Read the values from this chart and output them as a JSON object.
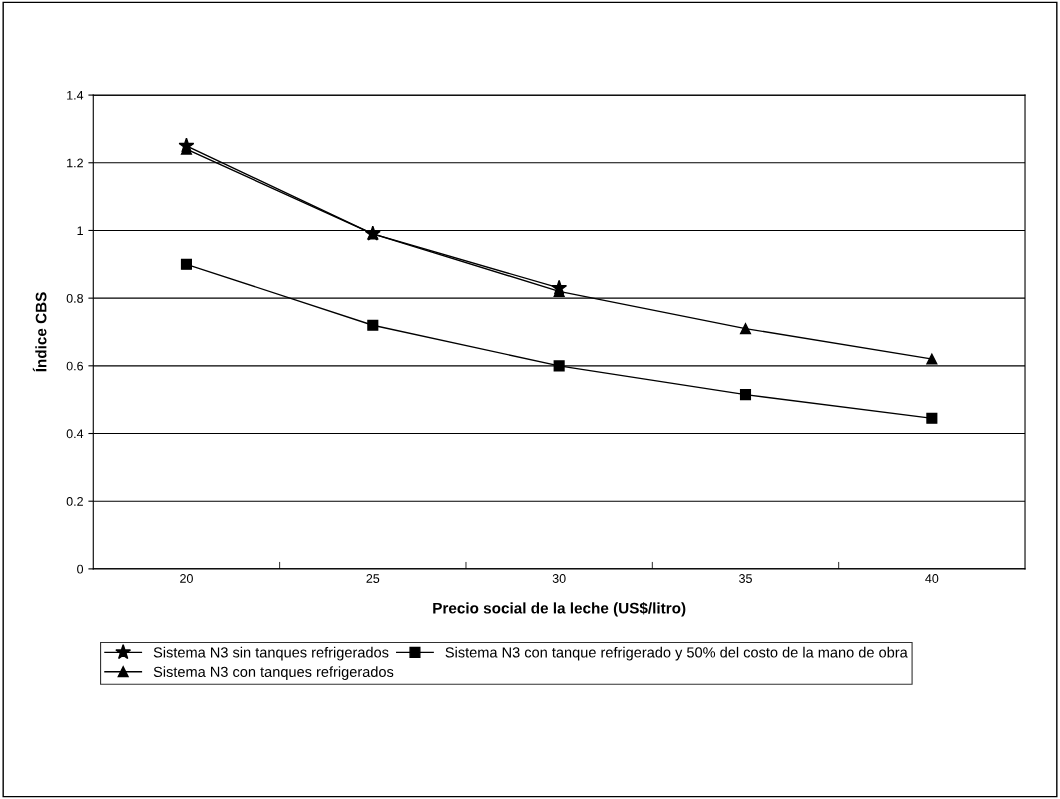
{
  "chart_data": {
    "type": "line",
    "categories": [
      "20",
      "25",
      "30",
      "35",
      "40"
    ],
    "xlabel": "Precio social de la leche (US$/litro)",
    "ylabel": "Índice CBS",
    "ylim": [
      0,
      1.4
    ],
    "yticks": [
      0,
      0.2,
      0.4,
      0.6,
      0.8,
      1,
      1.2,
      1.4
    ],
    "grid": "y",
    "legend": "bottom",
    "series": [
      {
        "name": "Sistema N3 sin tanques refrigerados",
        "color": "#000000",
        "marker": "star",
        "values": [
          1.25,
          0.99,
          0.83,
          null,
          null
        ]
      },
      {
        "name": "Sistema N3 con tanques refrigerados",
        "color": "#000000",
        "marker": "triangle",
        "values": [
          1.24,
          0.99,
          0.82,
          0.71,
          0.62
        ]
      },
      {
        "name": "Sistema N3 con tanque refrigerado y 50% del costo de la mano de obra",
        "color": "#000000",
        "marker": "square",
        "values": [
          0.9,
          0.72,
          0.6,
          0.515,
          0.445
        ]
      }
    ]
  }
}
